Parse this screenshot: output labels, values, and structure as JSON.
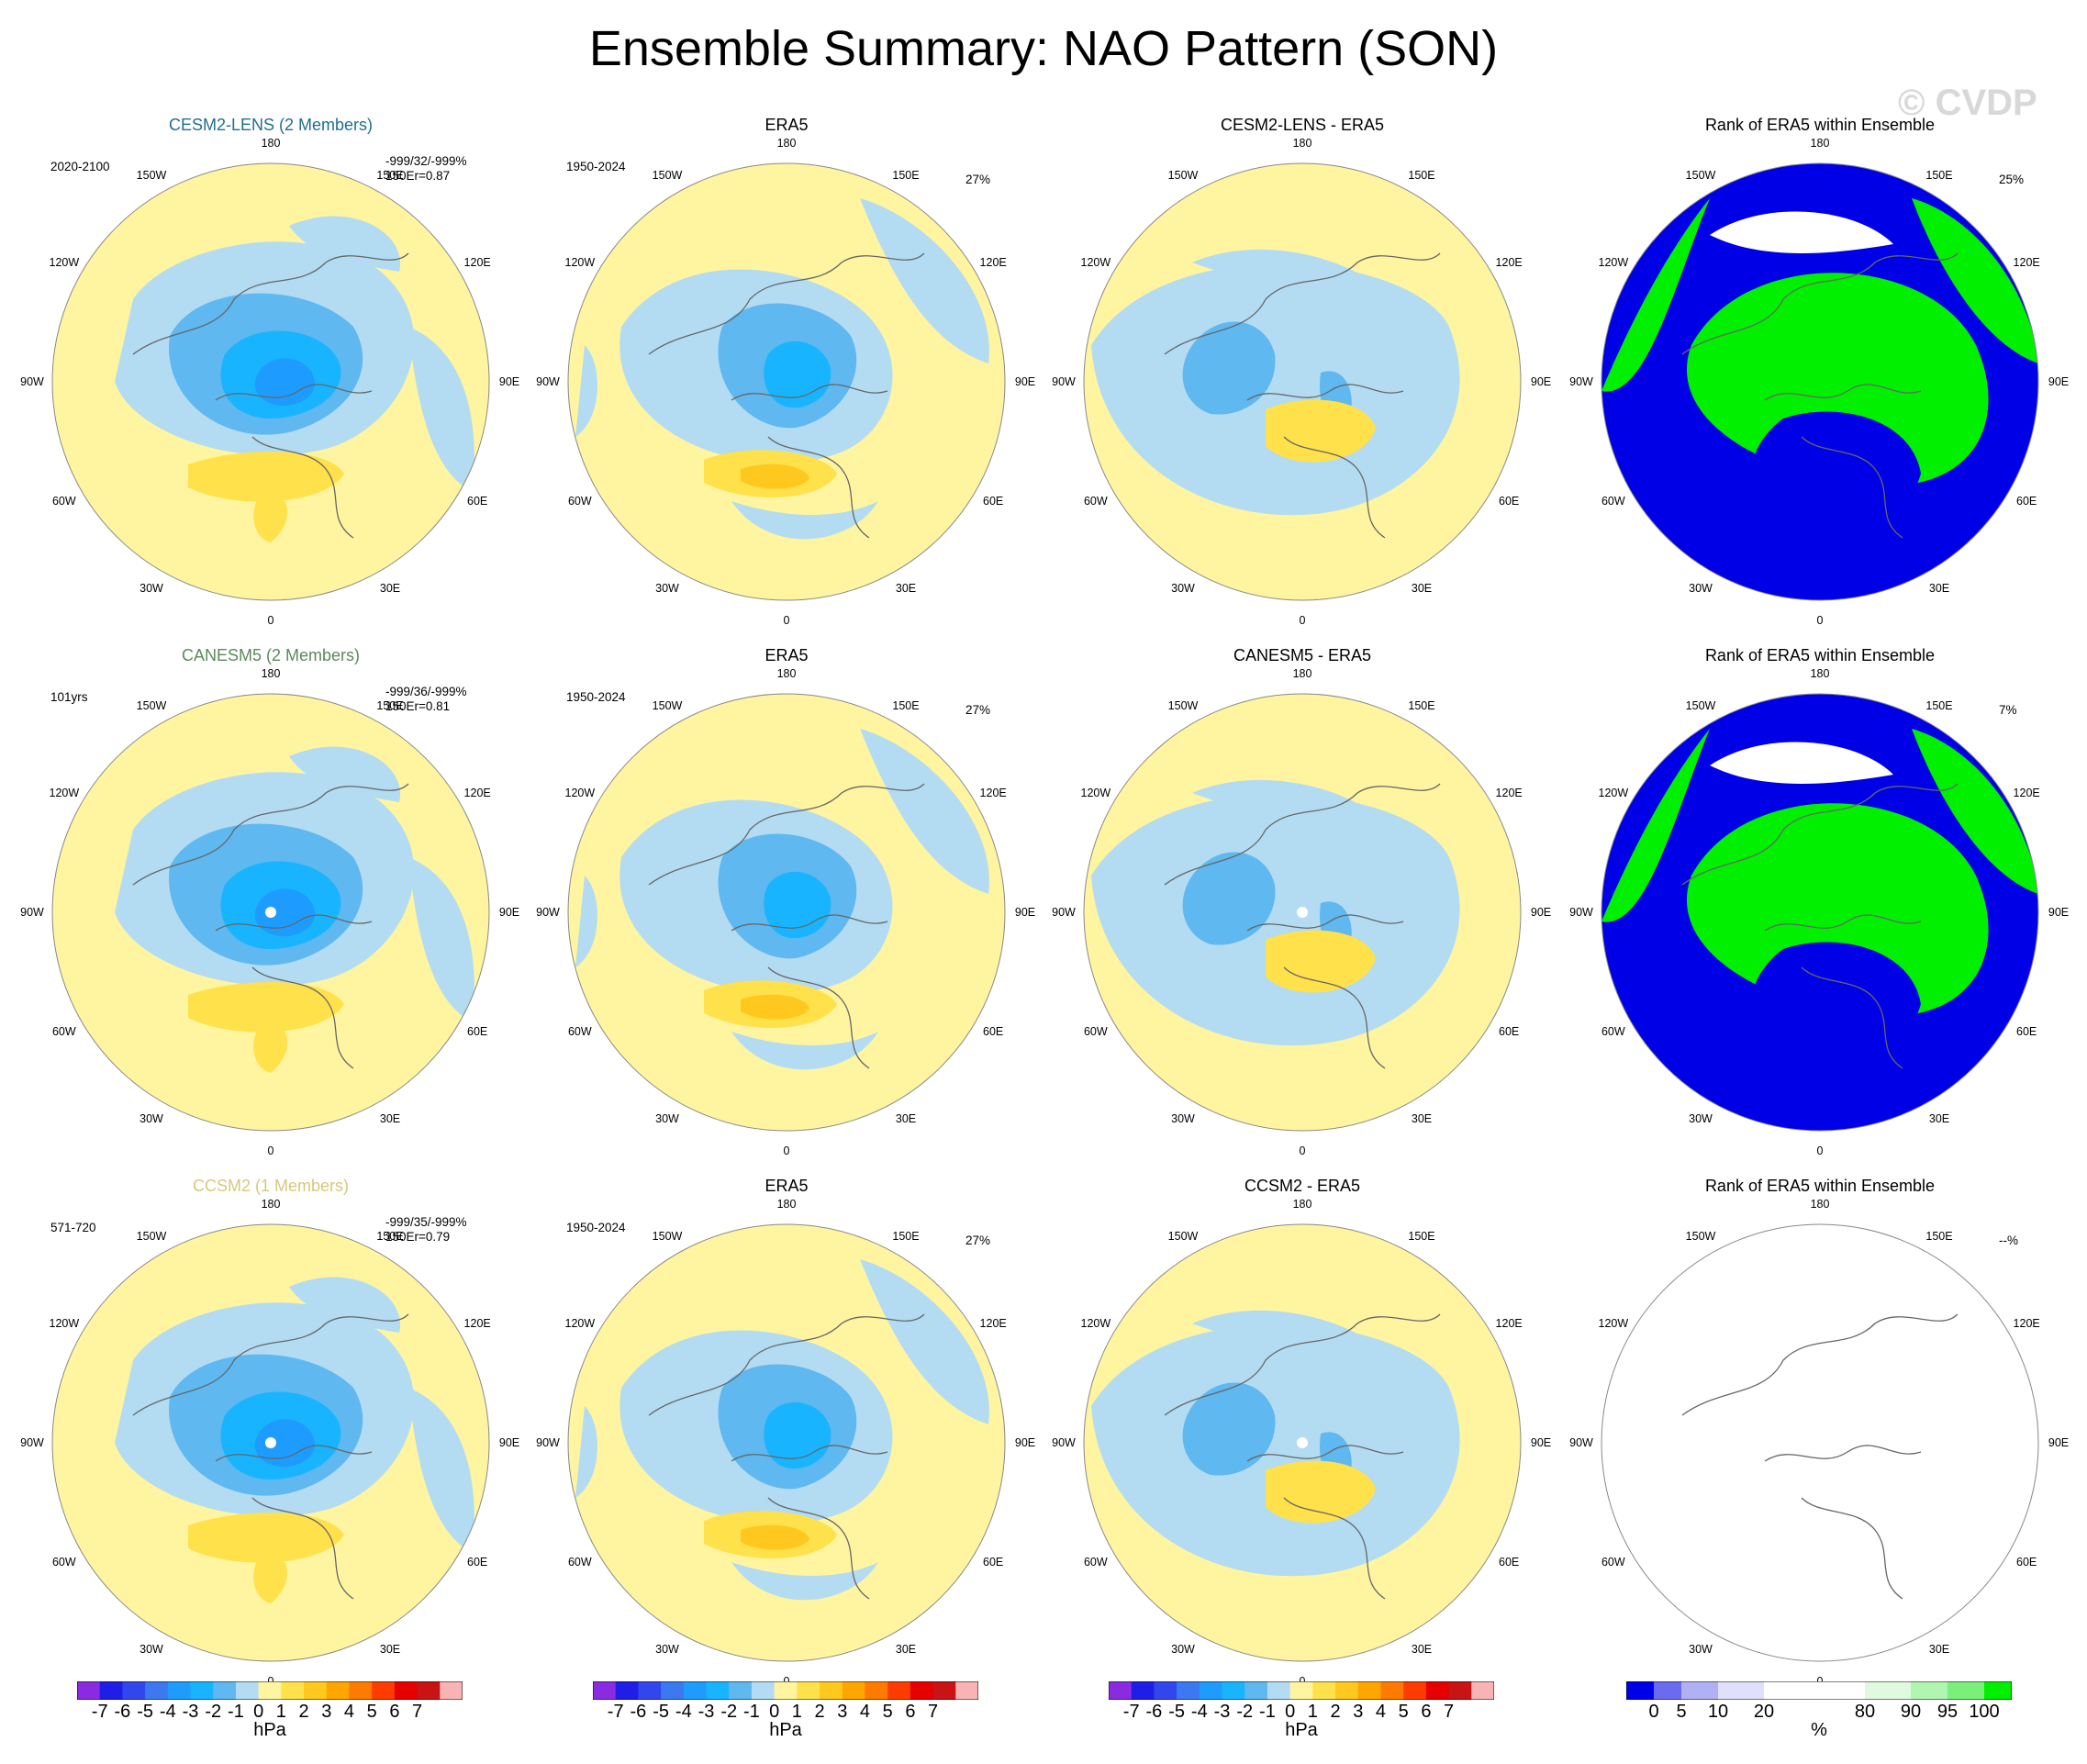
{
  "title": "Ensemble Summary: NAO Pattern (SON)",
  "watermark": "© CVDP",
  "colors": {
    "neg7": "#8a2be2",
    "neg6": "#1e1ee6",
    "neg5": "#3246ee",
    "neg4": "#3c78f0",
    "neg3": "#1e9bff",
    "neg2": "#19b4ff",
    "neg1": "#5fb8ef",
    "neg0": "#b3dcf2",
    "pos0": "#fff5a0",
    "pos1": "#ffe14b",
    "pos2": "#ffc81e",
    "pos3": "#ffa500",
    "pos4": "#ff7a00",
    "pos5": "#ff3c00",
    "pos6": "#e60000",
    "pos7": "#c81414",
    "pos8": "#f8b4b4",
    "rank_blue": "#0000e6",
    "rank_green": "#00f000",
    "rank_white": "#ffffff",
    "title_cesm": "#1f6f8f",
    "title_canesm": "#5a8a5a",
    "title_ccsm": "#d8c87a"
  },
  "lon_labels": [
    "180",
    "150E",
    "120E",
    "90E",
    "60E",
    "30E",
    "0",
    "30W",
    "60W",
    "90W",
    "120W",
    "150W"
  ],
  "rows": [
    {
      "model_title": "CESM2-LENS (2 Members)",
      "model_period": "2020-2100",
      "model_stats": "-999/32/-999%",
      "model_r": "150Er=0.87",
      "obs_title": "ERA5",
      "obs_period": "1950-2024",
      "obs_pct": "27%",
      "diff_title": "CESM2-LENS - ERA5",
      "rank_title": "Rank of ERA5 within Ensemble",
      "rank_pct": "25%"
    },
    {
      "model_title": "CANESM5 (2 Members)",
      "model_period": "101yrs",
      "model_stats": "-999/36/-999%",
      "model_r": "150Er=0.81",
      "obs_title": "ERA5",
      "obs_period": "1950-2024",
      "obs_pct": "27%",
      "diff_title": "CANESM5 - ERA5",
      "rank_title": "Rank of ERA5 within Ensemble",
      "rank_pct": "7%"
    },
    {
      "model_title": "CCSM2 (1 Members)",
      "model_period": "571-720",
      "model_stats": "-999/35/-999%",
      "model_r": "150Er=0.79",
      "obs_title": "ERA5",
      "obs_period": "1950-2024",
      "obs_pct": "27%",
      "diff_title": "CCSM2 - ERA5",
      "rank_title": "Rank of ERA5 within Ensemble",
      "rank_pct": "--%"
    }
  ],
  "chart_data": {
    "type": "heatmap",
    "projection": "north polar stereographic",
    "panel_grid": "3 rows x 4 columns",
    "contour_levels_hPa": [
      -7,
      -6,
      -5,
      -4,
      -3,
      -2,
      -1,
      0,
      1,
      2,
      3,
      4,
      5,
      6,
      7
    ],
    "hpa_colorbar": {
      "tick_labels": [
        "-7",
        "-6",
        "-5",
        "-4",
        "-3",
        "-2",
        "-1",
        "0",
        "1",
        "2",
        "3",
        "4",
        "5",
        "6",
        "7"
      ],
      "unit": "hPa"
    },
    "rank_colorbar": {
      "tick_labels": [
        "0",
        "5",
        "10",
        "20",
        "80",
        "90",
        "95",
        "100"
      ],
      "unit": "%"
    }
  }
}
